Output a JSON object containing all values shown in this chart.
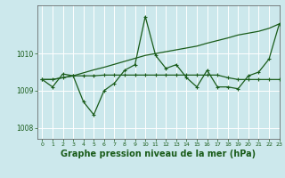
{
  "bg_color": "#cce8ec",
  "grid_color": "#ffffff",
  "line_color": "#1a5c1a",
  "xlabel": "Graphe pression niveau de la mer (hPa)",
  "xlabel_fontsize": 7,
  "ylim": [
    1007.7,
    1011.3
  ],
  "xlim": [
    -0.5,
    23
  ],
  "yticks": [
    1008,
    1009,
    1010
  ],
  "xticks": [
    0,
    1,
    2,
    3,
    4,
    5,
    6,
    7,
    8,
    9,
    10,
    11,
    12,
    13,
    14,
    15,
    16,
    17,
    18,
    19,
    20,
    21,
    22,
    23
  ],
  "series1": [
    1009.3,
    1009.1,
    1009.45,
    1009.4,
    1008.7,
    1008.35,
    1009.0,
    1009.2,
    1009.55,
    1009.7,
    1011.0,
    1009.95,
    1009.6,
    1009.7,
    1009.35,
    1009.1,
    1009.55,
    1009.1,
    1009.1,
    1009.05,
    1009.4,
    1009.5,
    1009.85,
    1010.8
  ],
  "series2": [
    1009.3,
    1009.3,
    1009.35,
    1009.4,
    1009.4,
    1009.4,
    1009.42,
    1009.42,
    1009.42,
    1009.42,
    1009.42,
    1009.42,
    1009.42,
    1009.42,
    1009.42,
    1009.42,
    1009.42,
    1009.42,
    1009.35,
    1009.3,
    1009.3,
    1009.3,
    1009.3,
    1009.3
  ],
  "series3": [
    1009.3,
    1009.3,
    1009.35,
    1009.4,
    1009.48,
    1009.56,
    1009.63,
    1009.71,
    1009.79,
    1009.87,
    1009.95,
    1010.0,
    1010.05,
    1010.1,
    1010.15,
    1010.2,
    1010.28,
    1010.35,
    1010.42,
    1010.5,
    1010.55,
    1010.6,
    1010.68,
    1010.8
  ]
}
